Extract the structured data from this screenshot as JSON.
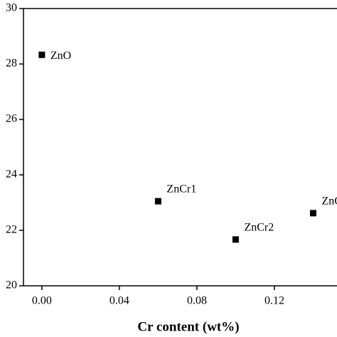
{
  "chart_data": {
    "type": "scatter",
    "x_label": "Cr content (wt%)",
    "categories": [
      "ZnO",
      "ZnCr1",
      "ZnCr2",
      "ZnC"
    ],
    "x": [
      0,
      0.06,
      0.1,
      0.14
    ],
    "values": [
      28.33,
      23.05,
      21.67,
      22.62
    ],
    "color": "#000000",
    "xlim": [
      -0.0095,
      0.1523
    ],
    "xticks": [
      {
        "value": 0,
        "label": "0.00"
      },
      0.04,
      0.08,
      0.12
    ],
    "ylim": [
      20,
      30
    ],
    "yticks": [
      20,
      22,
      24,
      26,
      28,
      30
    ],
    "grid": false
  }
}
